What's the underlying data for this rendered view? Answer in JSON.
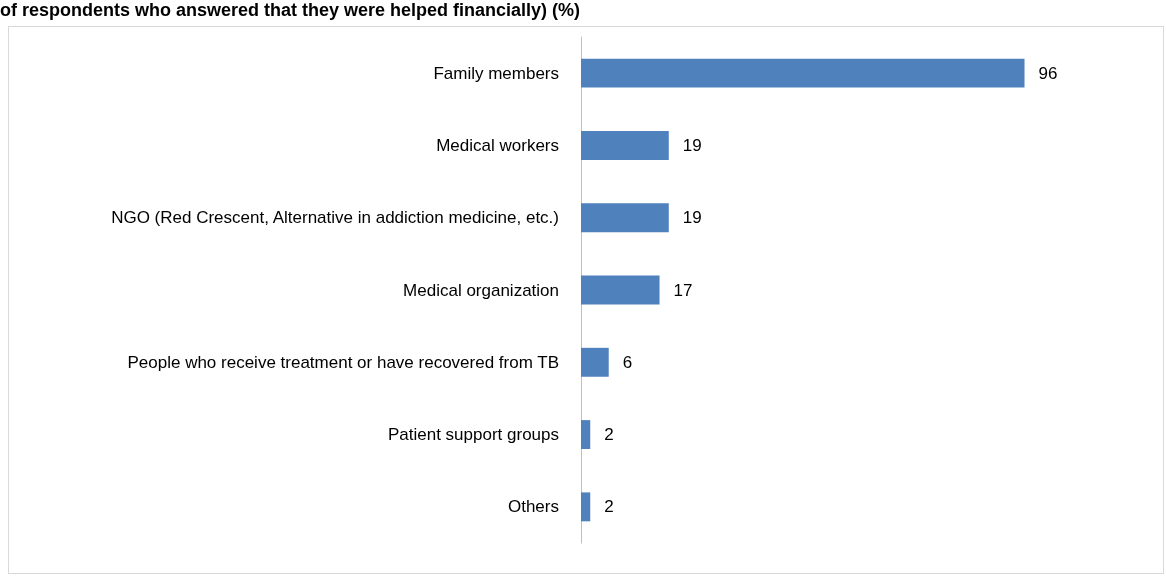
{
  "chart_data": {
    "type": "bar",
    "orientation": "horizontal",
    "title": "of respondents who answered that they were helped financially) (%)",
    "categories": [
      "Family members",
      "Medical workers",
      "NGO (Red Crescent, Alternative in addiction medicine, etc.)",
      "Medical organization",
      "People who receive treatment or have recovered from TB",
      "Patient support groups",
      "Others"
    ],
    "values": [
      96,
      19,
      19,
      17,
      6,
      2,
      2
    ],
    "color": "#4f81bd",
    "data_labels": true
  }
}
